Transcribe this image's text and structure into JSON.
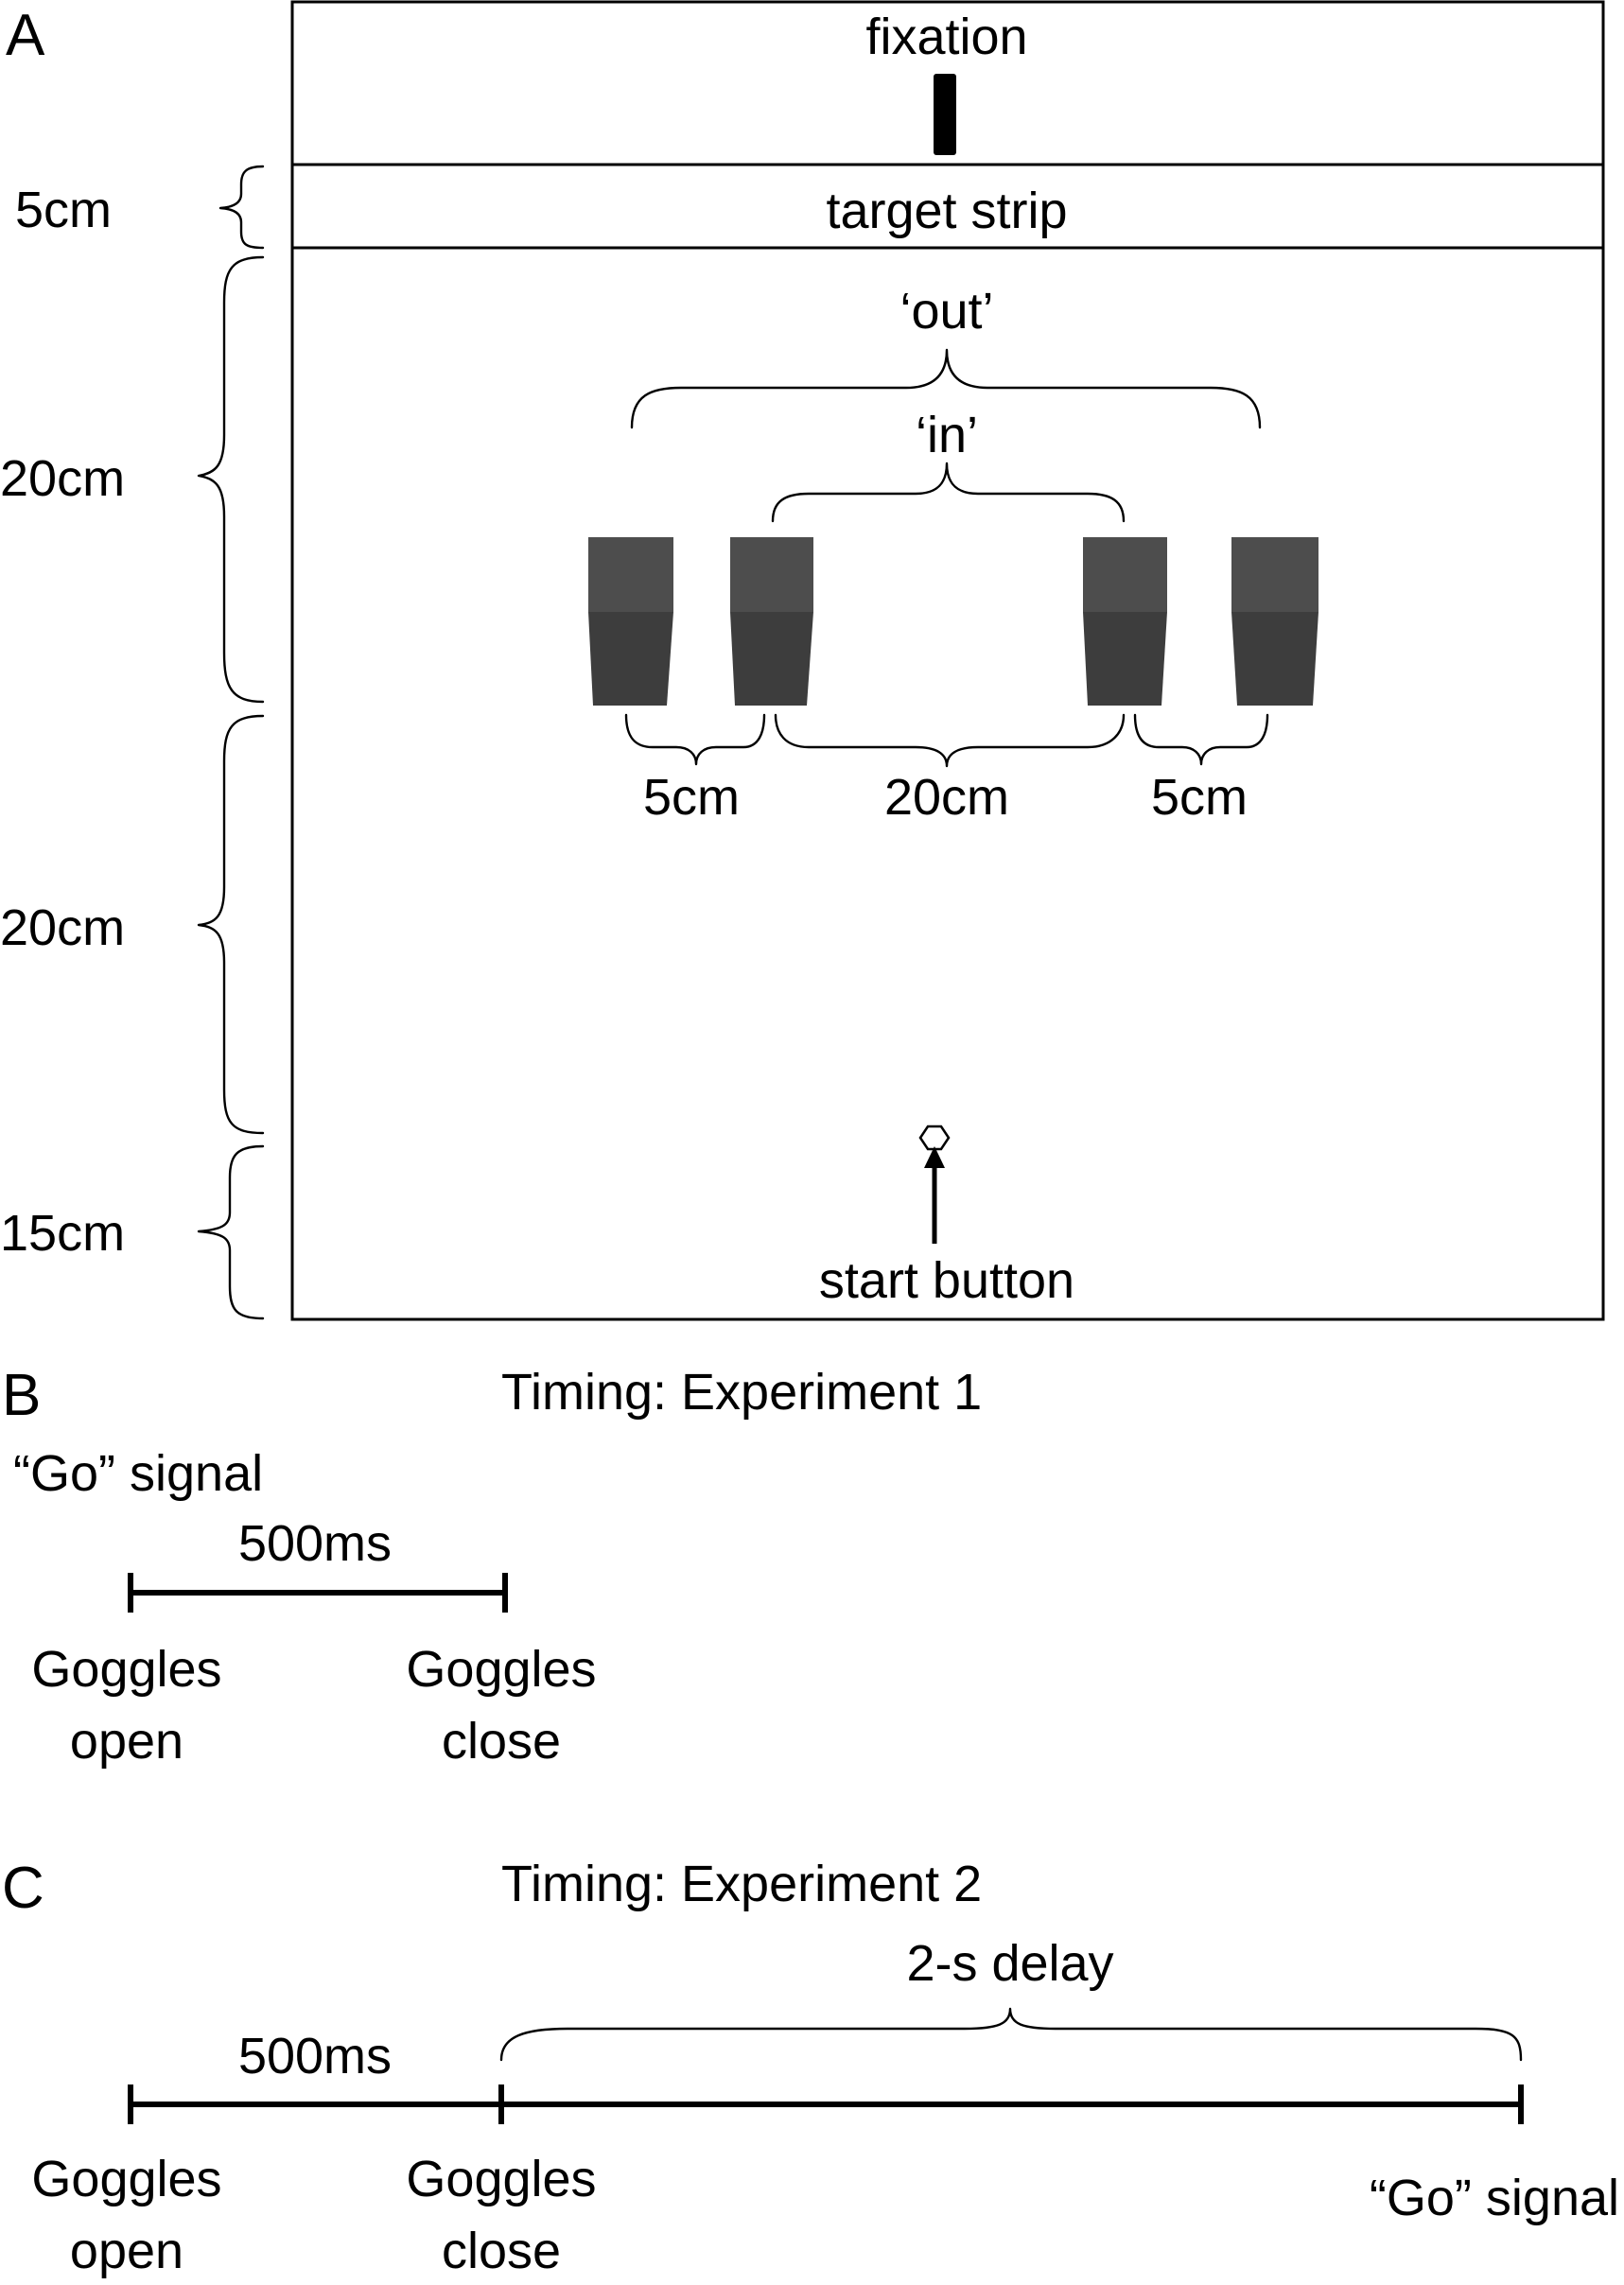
{
  "panel_a": {
    "letter": "A",
    "fixation_label": "fixation",
    "target_strip_label": "target strip",
    "out_label": "‘out’",
    "in_label": "‘in’",
    "start_button_label": "start button",
    "left_dimensions": [
      "5cm",
      "20cm",
      "20cm",
      "15cm"
    ],
    "gap_labels": [
      "5cm",
      "20cm",
      "5cm"
    ],
    "block_color": "#3d3d3d",
    "block_top_color": "#4d4d4d"
  },
  "panel_b": {
    "letter": "B",
    "title": "Timing: Experiment 1",
    "go_signal": "“Go” signal",
    "interval_label": "500ms",
    "start_event": [
      "Goggles",
      "open"
    ],
    "end_event": [
      "Goggles",
      "close"
    ]
  },
  "panel_c": {
    "letter": "C",
    "title": "Timing: Experiment 2",
    "delay_label": "2-s delay",
    "interval_label": "500ms",
    "start_event": [
      "Goggles",
      "open"
    ],
    "mid_event": [
      "Goggles",
      "close"
    ],
    "end_event": "“Go” signal"
  }
}
